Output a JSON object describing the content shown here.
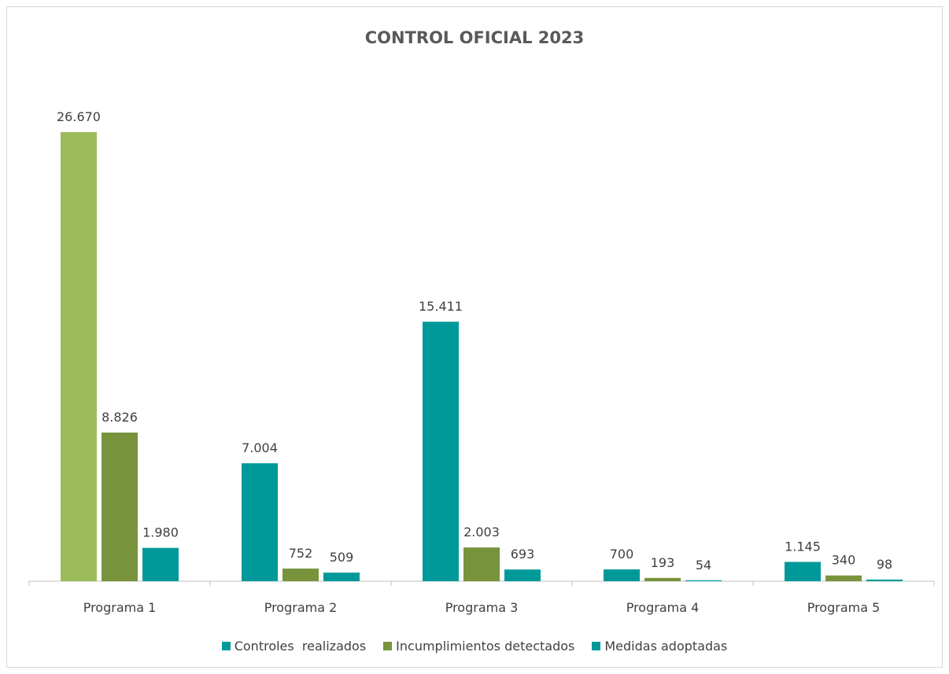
{
  "chart_data": {
    "type": "bar",
    "title": "CONTROL OFICIAL 2023",
    "xlabel": "",
    "ylabel": "",
    "grid": false,
    "legend_position": "bottom",
    "categories": [
      "Programa 1",
      "Programa 2",
      "Programa 3",
      "Programa 4",
      "Programa 5"
    ],
    "series": [
      {
        "name": "Controles  realizados",
        "color": "#009999",
        "values": [
          26670,
          7004,
          15411,
          700,
          1145
        ],
        "labels": [
          "26.670",
          "7.004",
          "15.411",
          "700",
          "1.145"
        ]
      },
      {
        "name": "Incumplimientos detectados",
        "color": "#77933C",
        "values": [
          8826,
          752,
          2003,
          193,
          340
        ],
        "labels": [
          "8.826",
          "752",
          "2.003",
          "193",
          "340"
        ]
      },
      {
        "name": "Medidas adoptadas",
        "color": "#009999",
        "values": [
          1980,
          509,
          693,
          54,
          98
        ],
        "labels": [
          "1.980",
          "509",
          "693",
          "54",
          "98"
        ]
      }
    ],
    "point_colors": {
      "0-0": "#9BBB59"
    },
    "ylim": [
      0,
      26670
    ]
  }
}
